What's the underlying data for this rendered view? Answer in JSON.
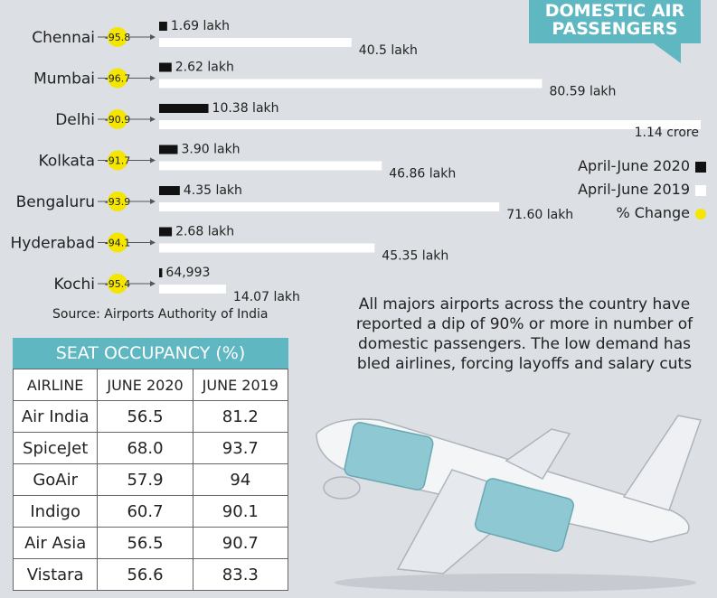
{
  "title": {
    "line1": "DOMESTIC AIR",
    "line2": "PASSENGERS"
  },
  "legend": {
    "series_2020": "April-June 2020",
    "series_2019": "April-June 2019",
    "change": "% Change"
  },
  "colors": {
    "series_2020": "#111111",
    "series_2019": "#ffffff",
    "change": "#f4e600",
    "accent": "#5fb7c2"
  },
  "chart_data": {
    "type": "bar",
    "orientation": "horizontal",
    "unit": "lakh",
    "categories": [
      "Chennai",
      "Mumbai",
      "Delhi",
      "Kolkata",
      "Bengaluru",
      "Hyderabad",
      "Kochi"
    ],
    "series": [
      {
        "name": "April-June 2020",
        "values": [
          1.69,
          2.62,
          10.38,
          3.9,
          4.35,
          2.68,
          0.64993
        ],
        "labels": [
          "1.69 lakh",
          "2.62 lakh",
          "10.38 lakh",
          "3.90 lakh",
          "4.35 lakh",
          "2.68 lakh",
          "64,993"
        ]
      },
      {
        "name": "April-June 2019",
        "values": [
          40.5,
          80.59,
          114,
          46.86,
          71.6,
          45.35,
          14.07
        ],
        "labels": [
          "40.5 lakh",
          "80.59 lakh",
          "1.14 crore",
          "46.86 lakh",
          "71.60 lakh",
          "45.35 lakh",
          "14.07 lakh"
        ]
      }
    ],
    "pct_change": [
      "-95.8",
      "-96.7",
      "-90.9",
      "-91.7",
      "-93.9",
      "-94.1",
      "-95.4"
    ],
    "xlim": [
      0,
      114
    ]
  },
  "source": "Source: Airports Authority of India",
  "note": "All majors airports across the country have reported a dip of 90% or more in number of domestic passengers. The low demand has bled airlines, forcing layoffs and salary cuts",
  "seat_occupancy": {
    "title": "SEAT OCCUPANCY (%)",
    "headers": [
      "AIRLINE",
      "JUNE 2020",
      "JUNE 2019"
    ],
    "rows": [
      [
        "Air India",
        "56.5",
        "81.2"
      ],
      [
        "SpiceJet",
        "68.0",
        "93.7"
      ],
      [
        "GoAir",
        "57.9",
        "94"
      ],
      [
        "Indigo",
        "60.7",
        "90.1"
      ],
      [
        "Air Asia",
        "56.5",
        "90.7"
      ],
      [
        "Vistara",
        "56.6",
        "83.3"
      ]
    ]
  }
}
